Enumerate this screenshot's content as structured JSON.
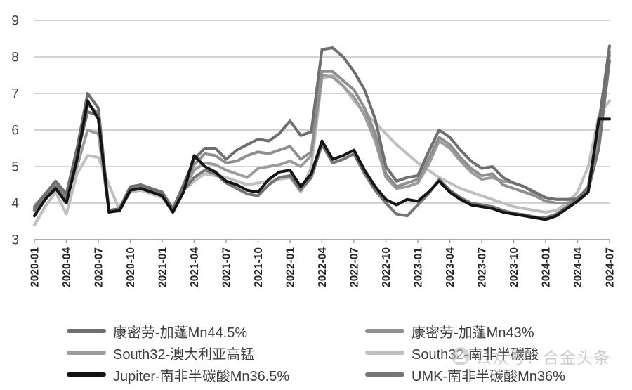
{
  "watermark": {
    "text": "公众号：合金头条",
    "icon": "wechat-official-account-icon",
    "color": "#a6a6a6"
  },
  "axes": {
    "y_ticks": [
      3,
      4,
      5,
      6,
      7,
      8,
      9
    ],
    "gridline_color": "#c6c6c6",
    "axis_color": "#9a9a9a"
  },
  "chart_data": {
    "type": "line",
    "title": "",
    "xlabel": "",
    "ylabel": "",
    "ylim": [
      3,
      9
    ],
    "grid": "horizontal",
    "legend_position": "bottom-two-columns",
    "x_monthly_range": [
      "2020-01",
      "2024-07"
    ],
    "x_tick_labels": [
      "2020-01",
      "2020-04",
      "2020-07",
      "2020-10",
      "2021-01",
      "2021-04",
      "2021-07",
      "2021-10",
      "2022-01",
      "2022-04",
      "2022-07",
      "2022-10",
      "2023-01",
      "2023-04",
      "2023-07",
      "2023-10",
      "2024-01",
      "2024-04",
      "2024-07"
    ],
    "x_tick_step_months": 3,
    "series": [
      {
        "name": "康密劳-加蓬Mn44.5%",
        "color": "#6f6f6f",
        "values": [
          3.9,
          4.25,
          4.6,
          4.25,
          5.5,
          7.0,
          6.6,
          3.8,
          3.85,
          4.45,
          4.5,
          4.4,
          4.3,
          3.85,
          4.5,
          5.2,
          5.5,
          5.5,
          5.2,
          5.45,
          5.6,
          5.75,
          5.7,
          5.9,
          6.25,
          5.85,
          5.95,
          8.2,
          8.25,
          8.0,
          7.6,
          7.1,
          6.3,
          5.0,
          4.6,
          4.7,
          4.75,
          5.4,
          6.0,
          5.8,
          5.45,
          5.15,
          4.95,
          5.0,
          4.7,
          4.55,
          4.45,
          4.3,
          4.15,
          4.1,
          4.1,
          4.1,
          4.45,
          6.2,
          8.3
        ]
      },
      {
        "name": "康密劳-加蓬Mn43%",
        "color": "#8f8f8f",
        "values": [
          3.85,
          4.2,
          4.5,
          4.2,
          5.35,
          6.7,
          6.45,
          3.78,
          3.8,
          4.4,
          4.45,
          4.35,
          4.25,
          3.8,
          4.45,
          5.05,
          5.35,
          5.3,
          5.1,
          5.15,
          5.3,
          5.4,
          5.35,
          5.45,
          5.55,
          5.2,
          5.4,
          7.6,
          7.6,
          7.35,
          7.1,
          6.6,
          5.9,
          4.8,
          4.45,
          4.55,
          4.65,
          5.2,
          5.8,
          5.6,
          5.25,
          4.95,
          4.75,
          4.8,
          4.5,
          4.4,
          4.3,
          4.2,
          4.05,
          4.0,
          4.0,
          4.05,
          4.35,
          6.0,
          8.15
        ]
      },
      {
        "name": "South32-澳大利亚高锰",
        "color": "#9c9c9c",
        "values": [
          3.8,
          4.1,
          4.45,
          4.15,
          5.0,
          6.0,
          5.9,
          3.76,
          3.78,
          4.35,
          4.4,
          4.3,
          4.2,
          3.78,
          4.4,
          4.9,
          5.1,
          5.05,
          4.9,
          4.8,
          4.7,
          4.95,
          5.0,
          5.05,
          5.15,
          5.0,
          5.3,
          7.5,
          7.45,
          7.2,
          6.9,
          6.4,
          5.7,
          4.7,
          4.4,
          4.45,
          4.55,
          5.05,
          5.7,
          5.5,
          5.15,
          4.85,
          4.65,
          4.7,
          4.6,
          4.55,
          4.45,
          4.25,
          4.15,
          4.1,
          4.1,
          4.15,
          4.4,
          5.9,
          8.05
        ]
      },
      {
        "name": "South32-南非半碳酸",
        "color": "#bfbfbf",
        "values": [
          3.4,
          3.9,
          4.3,
          3.7,
          4.8,
          5.3,
          5.25,
          4.5,
          3.8,
          4.3,
          4.35,
          4.25,
          4.15,
          3.75,
          4.35,
          4.6,
          4.8,
          4.75,
          4.7,
          4.6,
          4.5,
          4.55,
          4.6,
          4.65,
          4.7,
          4.3,
          5.0,
          7.4,
          7.5,
          7.2,
          6.8,
          6.5,
          6.2,
          5.9,
          5.6,
          5.35,
          5.1,
          4.9,
          4.7,
          4.55,
          4.4,
          4.3,
          4.2,
          4.1,
          4.0,
          3.9,
          3.85,
          3.8,
          3.75,
          3.8,
          4.0,
          4.3,
          5.0,
          6.4,
          6.8
        ]
      },
      {
        "name": "Jupiter-南非半碳酸Mn36.5%",
        "color": "#141414",
        "values": [
          3.65,
          4.1,
          4.4,
          4.0,
          5.2,
          6.8,
          6.3,
          3.75,
          3.8,
          4.35,
          4.4,
          4.3,
          4.2,
          3.75,
          4.3,
          5.3,
          5.0,
          4.85,
          4.6,
          4.5,
          4.35,
          4.3,
          4.65,
          4.85,
          4.9,
          4.45,
          4.8,
          5.7,
          5.2,
          5.3,
          5.45,
          4.9,
          4.45,
          4.1,
          3.95,
          4.1,
          4.05,
          4.3,
          4.6,
          4.3,
          4.1,
          3.95,
          3.9,
          3.85,
          3.75,
          3.7,
          3.65,
          3.6,
          3.55,
          3.65,
          3.85,
          4.05,
          4.3,
          6.3,
          6.3
        ]
      },
      {
        "name": "UMK-南非半碳酸Mn36%",
        "color": "#757575",
        "values": [
          3.8,
          4.15,
          4.45,
          4.1,
          5.3,
          6.5,
          6.4,
          3.76,
          3.82,
          4.4,
          4.42,
          4.32,
          4.22,
          3.76,
          4.35,
          4.7,
          4.9,
          4.8,
          4.55,
          4.4,
          4.25,
          4.2,
          4.5,
          4.7,
          4.75,
          4.35,
          4.7,
          5.6,
          5.1,
          5.2,
          5.35,
          4.8,
          4.35,
          4.0,
          3.7,
          3.65,
          3.95,
          4.25,
          4.65,
          4.35,
          4.15,
          4.0,
          3.95,
          3.9,
          3.8,
          3.72,
          3.68,
          3.62,
          3.6,
          3.7,
          3.9,
          4.1,
          4.35,
          5.5,
          7.9
        ]
      }
    ]
  },
  "legend": {
    "items": [
      {
        "label": "康密劳-加蓬Mn44.5%",
        "series_index": 0,
        "col": 0,
        "row": 0
      },
      {
        "label": "康密劳-加蓬Mn43%",
        "series_index": 1,
        "col": 1,
        "row": 0
      },
      {
        "label": "South32-澳大利亚高锰",
        "series_index": 2,
        "col": 0,
        "row": 1
      },
      {
        "label": "South32-南非半碳酸",
        "series_index": 3,
        "col": 1,
        "row": 1
      },
      {
        "label": "Jupiter-南非半碳酸Mn36.5%",
        "series_index": 4,
        "col": 0,
        "row": 2
      },
      {
        "label": "UMK-南非半碳酸Mn36%",
        "series_index": 5,
        "col": 1,
        "row": 2
      }
    ]
  }
}
